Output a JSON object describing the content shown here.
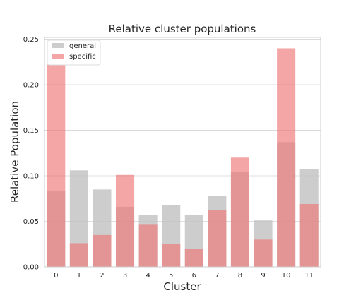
{
  "chart_data": {
    "type": "bar",
    "title": "Relative cluster populations",
    "xlabel": "Cluster",
    "ylabel": "Relative Population",
    "categories": [
      "0",
      "1",
      "2",
      "3",
      "4",
      "5",
      "6",
      "7",
      "8",
      "9",
      "10",
      "11"
    ],
    "series": [
      {
        "name": "general",
        "color": "#c0c0c0",
        "opacity": 0.8,
        "values": [
          0.083,
          0.106,
          0.085,
          0.066,
          0.057,
          0.068,
          0.057,
          0.078,
          0.104,
          0.051,
          0.137,
          0.107
        ]
      },
      {
        "name": "specific",
        "color": "#ee7777",
        "opacity": 0.65,
        "values": [
          0.222,
          0.026,
          0.035,
          0.101,
          0.047,
          0.025,
          0.02,
          0.062,
          0.12,
          0.03,
          0.24,
          0.069
        ]
      }
    ],
    "ylim": [
      0,
      0.252
    ],
    "yticks": [
      "0.00",
      "0.05",
      "0.10",
      "0.15",
      "0.20",
      "0.25"
    ],
    "ytick_values": [
      0,
      0.05,
      0.1,
      0.15,
      0.2,
      0.25
    ],
    "grid": true,
    "legend": "top-left"
  }
}
